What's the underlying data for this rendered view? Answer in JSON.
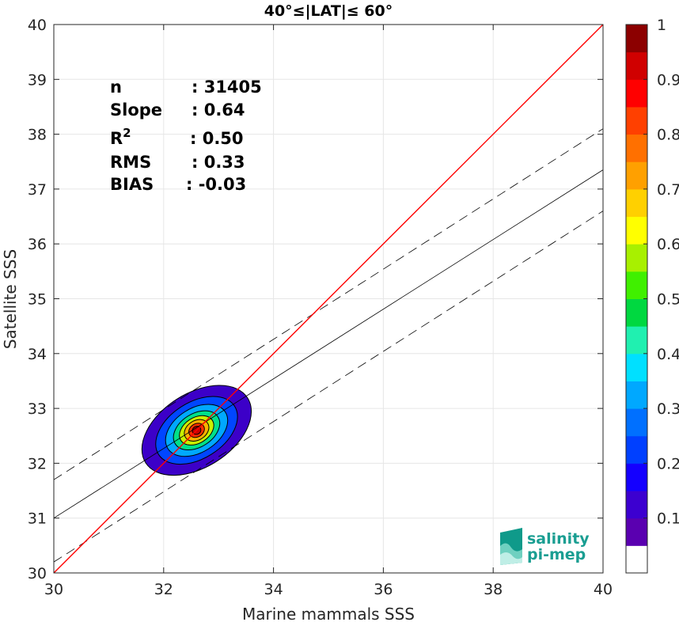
{
  "chart_data": {
    "type": "heatmap",
    "title": "40°≤|LAT|≤ 60°",
    "xlabel": "Marine mammals SSS",
    "ylabel": "Satellite SSS",
    "xlim": [
      30,
      40
    ],
    "ylim": [
      30,
      40
    ],
    "xticks": [
      "30",
      "32",
      "34",
      "36",
      "38",
      "40"
    ],
    "yticks": [
      "30",
      "31",
      "32",
      "33",
      "34",
      "35",
      "36",
      "37",
      "38",
      "39",
      "40"
    ],
    "grid": true,
    "stats": [
      {
        "label": "n",
        "value": ": 31405"
      },
      {
        "label": "Slope",
        "value": ": 0.64"
      },
      {
        "label": "R",
        "sup": "2",
        "value": ": 0.50"
      },
      {
        "label": "RMS",
        "value": ": 0.33"
      },
      {
        "label": "BIAS",
        "value": ": -0.03"
      }
    ],
    "identity_line": {
      "color": "#ff0000",
      "x": [
        30,
        40
      ],
      "y": [
        30,
        40
      ]
    },
    "regression_line": {
      "x": [
        30,
        40
      ],
      "y": [
        31.0,
        37.35
      ]
    },
    "dashed_lines": [
      {
        "x": [
          30,
          40
        ],
        "y": [
          31.7,
          38.1
        ]
      },
      {
        "x": [
          30,
          40
        ],
        "y": [
          30.2,
          36.6
        ]
      }
    ],
    "density_center": {
      "x": 32.6,
      "y": 32.6
    },
    "density_levels": [
      {
        "level": 0.05,
        "rx": 1.1,
        "ry": 0.42,
        "color": "#3c00c8"
      },
      {
        "level": 0.2,
        "rx": 0.82,
        "ry": 0.32,
        "color": "#0046ff"
      },
      {
        "level": 0.35,
        "rx": 0.62,
        "ry": 0.25,
        "color": "#00a8ff"
      },
      {
        "level": 0.5,
        "rx": 0.46,
        "ry": 0.19,
        "color": "#00e08a"
      },
      {
        "level": 0.6,
        "rx": 0.34,
        "ry": 0.145,
        "color": "#c8f000"
      },
      {
        "level": 0.7,
        "rx": 0.24,
        "ry": 0.11,
        "color": "#ffb000"
      },
      {
        "level": 0.85,
        "rx": 0.15,
        "ry": 0.075,
        "color": "#ff3000"
      },
      {
        "level": 0.95,
        "rx": 0.08,
        "ry": 0.045,
        "color": "#c80000"
      }
    ],
    "colorbar": {
      "labels": [
        "1",
        "0.9",
        "0.8",
        "0.7",
        "0.6",
        "0.5",
        "0.4",
        "0.3",
        "0.2",
        "0.1"
      ],
      "colors": [
        "#ffffff",
        "#5a00b0",
        "#3c00d0",
        "#1400ff",
        "#0040ff",
        "#0070ff",
        "#00a8ff",
        "#00e0ff",
        "#20f0b0",
        "#00d840",
        "#40f000",
        "#a8f000",
        "#ffff00",
        "#ffd000",
        "#ffa000",
        "#ff7000",
        "#ff4000",
        "#ff0000",
        "#d00000",
        "#8c0000"
      ]
    }
  },
  "logo": {
    "line1": "salinity",
    "line2": "pi-mep"
  }
}
